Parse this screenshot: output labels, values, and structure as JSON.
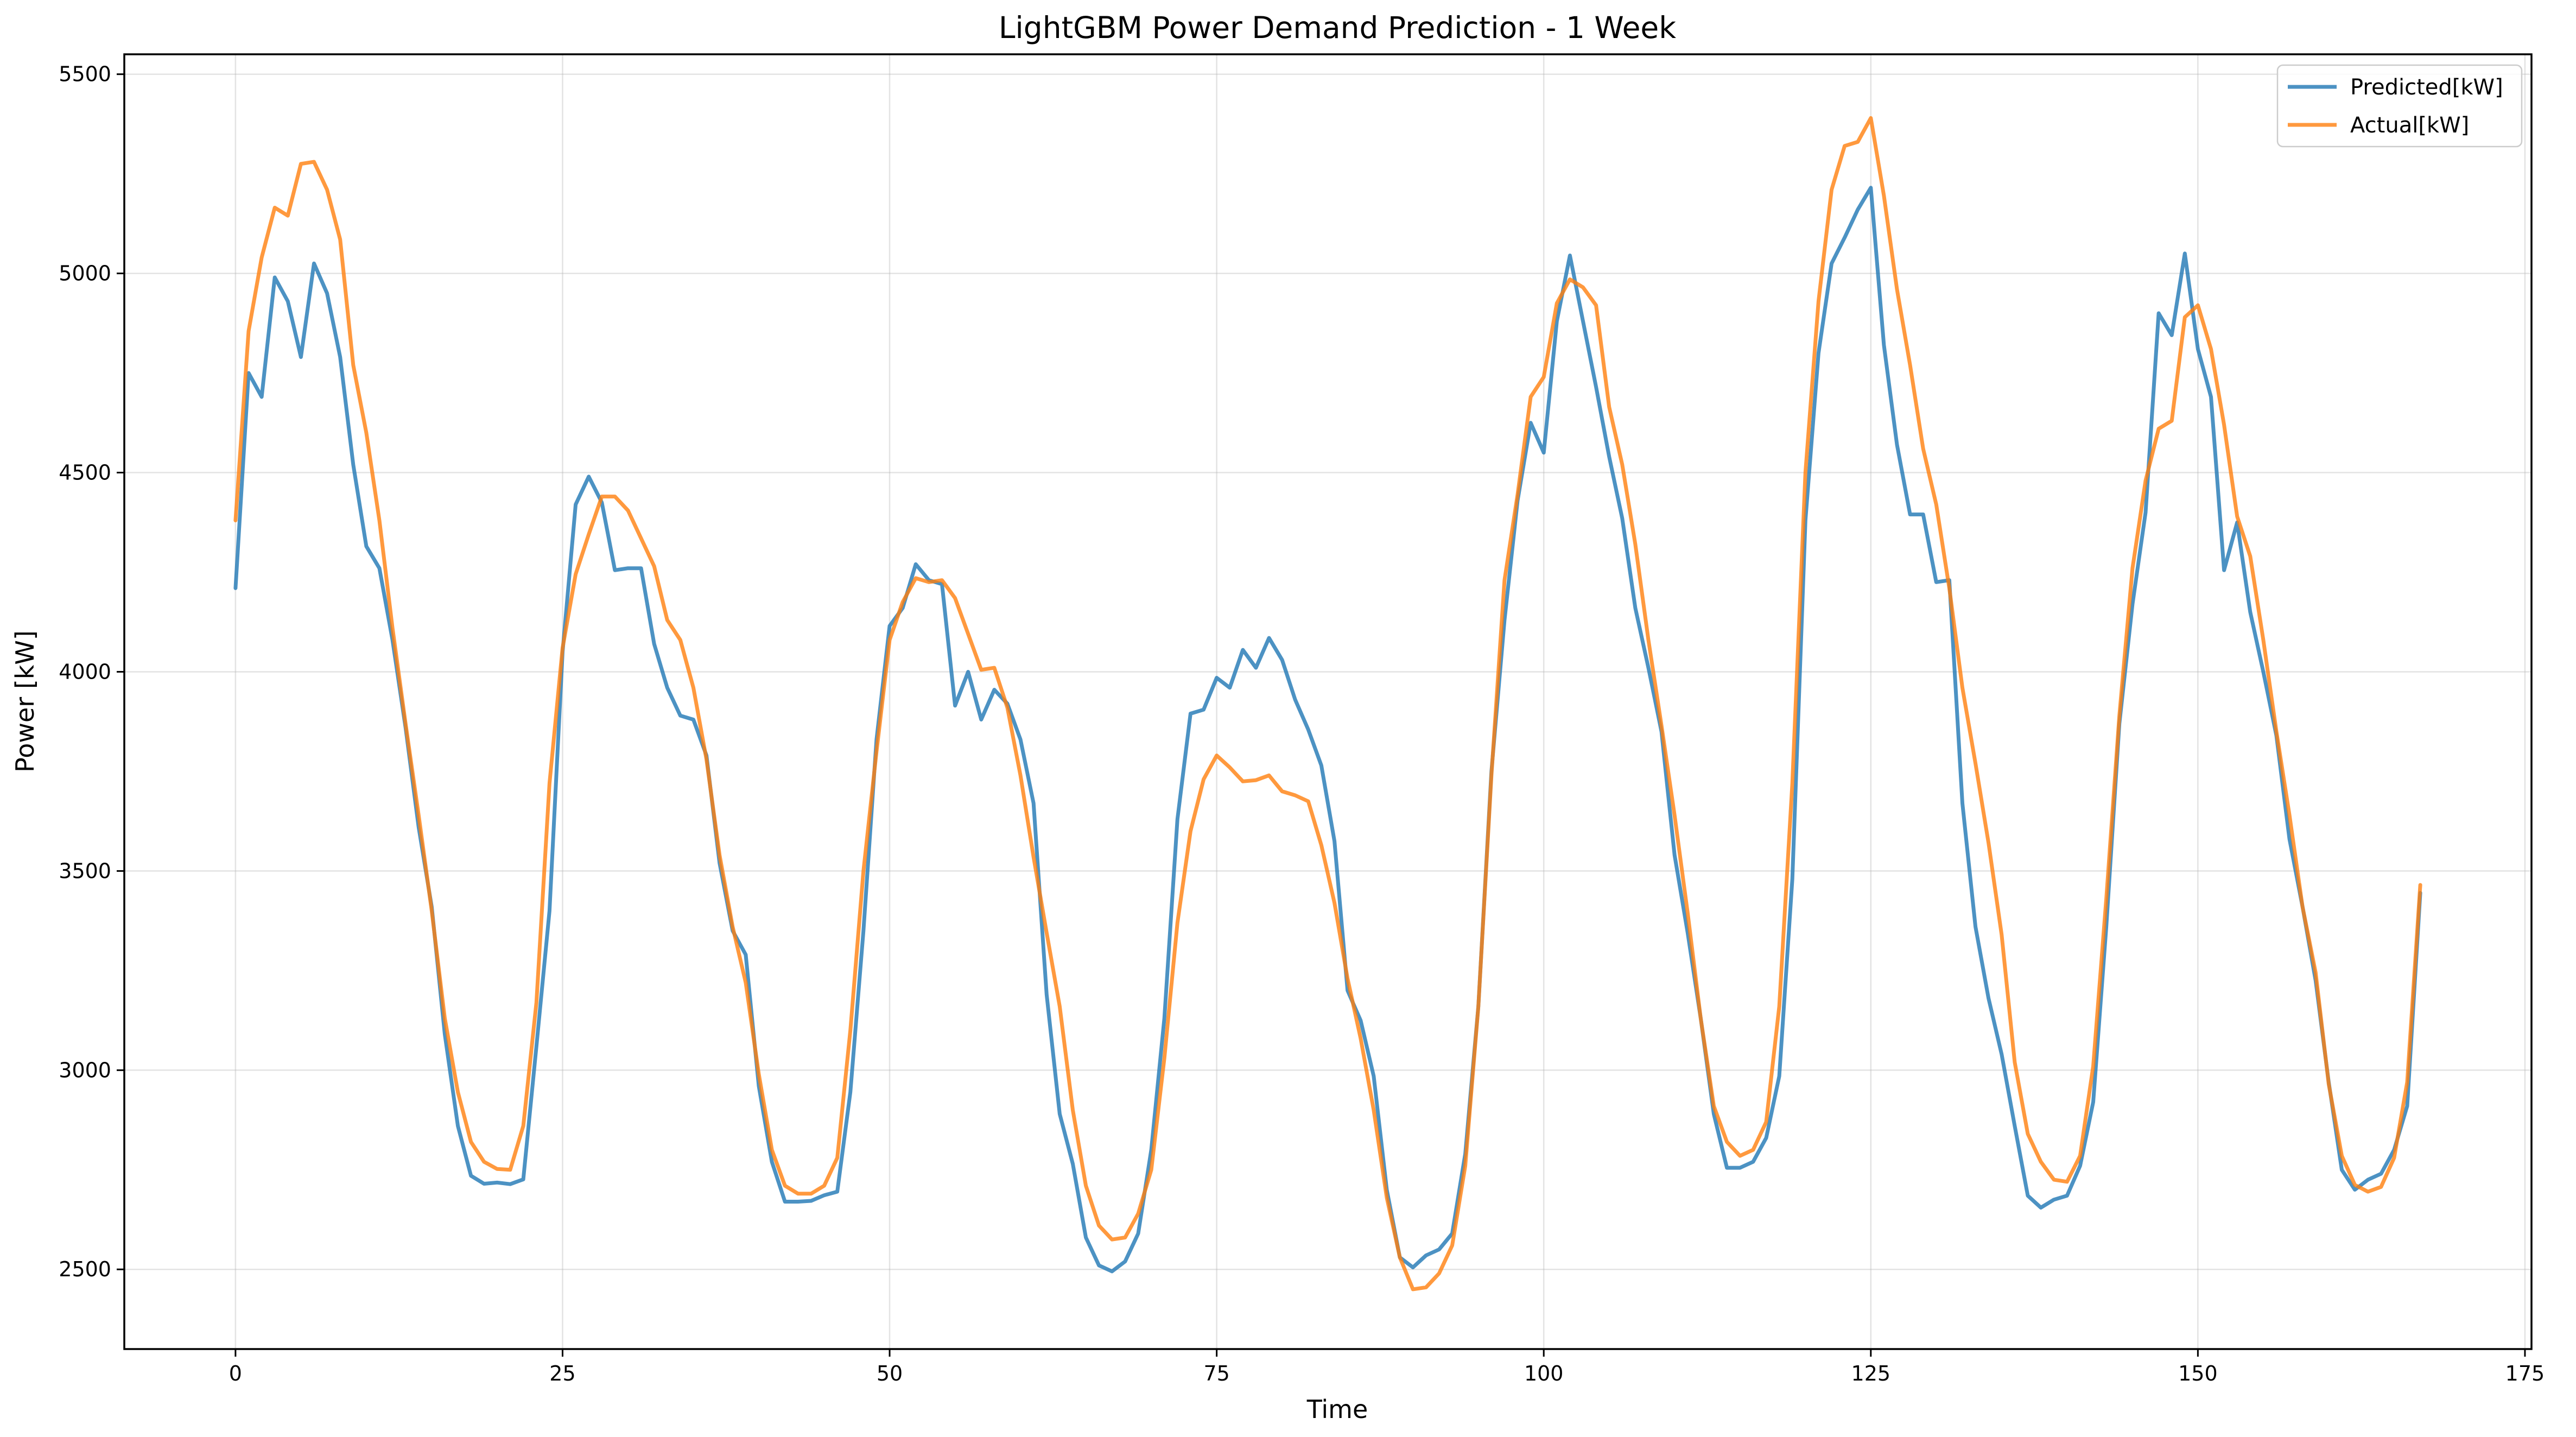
{
  "chart_data": {
    "type": "line",
    "title": "LightGBM Power Demand Prediction - 1 Week",
    "xlabel": "Time",
    "ylabel": "Power [kW]",
    "xlim": [
      -8.5,
      175.5
    ],
    "ylim": [
      2300,
      5550
    ],
    "xticks": [
      0,
      25,
      50,
      75,
      100,
      125,
      150,
      175
    ],
    "yticks": [
      2500,
      3000,
      3500,
      4000,
      4500,
      5000,
      5500
    ],
    "grid": true,
    "legend_position": "top-right",
    "series": [
      {
        "name": "Predicted[kW]",
        "color": "#1f77b4",
        "values": [
          4210,
          4750,
          4690,
          4990,
          4930,
          4790,
          5025,
          4950,
          4790,
          4520,
          4315,
          4260,
          4080,
          3860,
          3610,
          3410,
          3090,
          2860,
          2735,
          2715,
          2718,
          2714,
          2726,
          3060,
          3400,
          4050,
          4420,
          4490,
          4425,
          4255,
          4260,
          4260,
          4070,
          3960,
          3890,
          3880,
          3790,
          3520,
          3350,
          3290,
          2960,
          2770,
          2670,
          2670,
          2672,
          2686,
          2695,
          2945,
          3350,
          3830,
          4115,
          4160,
          4270,
          4230,
          4220,
          3915,
          4000,
          3880,
          3955,
          3920,
          3830,
          3670,
          3190,
          2890,
          2765,
          2580,
          2510,
          2495,
          2520,
          2590,
          2800,
          3130,
          3630,
          3895,
          3905,
          3985,
          3960,
          4055,
          4010,
          4085,
          4030,
          3930,
          3855,
          3765,
          3575,
          3200,
          3125,
          2985,
          2700,
          2530,
          2505,
          2535,
          2550,
          2590,
          2790,
          3160,
          3750,
          4130,
          4430,
          4625,
          4550,
          4880,
          5045,
          4880,
          4715,
          4540,
          4385,
          4160,
          4010,
          3850,
          3540,
          3345,
          3130,
          2890,
          2755,
          2755,
          2770,
          2830,
          2985,
          3480,
          4380,
          4800,
          5025,
          5090,
          5160,
          5215,
          4820,
          4570,
          4395,
          4395,
          4225,
          4230,
          3670,
          3360,
          3180,
          3040,
          2860,
          2685,
          2655,
          2675,
          2685,
          2760,
          2920,
          3360,
          3870,
          4170,
          4400,
          4900,
          4845,
          5050,
          4810,
          4690,
          4255,
          4375,
          4150,
          4000,
          3840,
          3580,
          3410,
          3225,
          2970,
          2750,
          2700,
          2725,
          2740,
          2800,
          2910,
          3445
        ]
      },
      {
        "name": "Actual[kW]",
        "color": "#ff7f0e",
        "values": [
          4380,
          4855,
          5040,
          5165,
          5145,
          5275,
          5280,
          5210,
          5085,
          4770,
          4600,
          4380,
          4110,
          3870,
          3640,
          3400,
          3130,
          2945,
          2820,
          2770,
          2752,
          2750,
          2860,
          3170,
          3720,
          4060,
          4245,
          4345,
          4440,
          4440,
          4405,
          4335,
          4265,
          4130,
          4080,
          3960,
          3780,
          3540,
          3360,
          3220,
          2990,
          2800,
          2710,
          2690,
          2690,
          2710,
          2780,
          3100,
          3500,
          3800,
          4080,
          4175,
          4235,
          4225,
          4230,
          4185,
          4095,
          4005,
          4010,
          3910,
          3740,
          3535,
          3345,
          3160,
          2900,
          2710,
          2610,
          2575,
          2580,
          2640,
          2750,
          3030,
          3370,
          3600,
          3730,
          3790,
          3760,
          3725,
          3728,
          3740,
          3700,
          3690,
          3675,
          3565,
          3420,
          3230,
          3080,
          2900,
          2680,
          2530,
          2450,
          2455,
          2490,
          2560,
          2760,
          3160,
          3740,
          4230,
          4445,
          4690,
          4740,
          4925,
          4985,
          4965,
          4920,
          4665,
          4520,
          4320,
          4080,
          3865,
          3640,
          3395,
          3130,
          2910,
          2820,
          2785,
          2800,
          2870,
          3160,
          3720,
          4500,
          4930,
          5210,
          5320,
          5330,
          5390,
          5195,
          4960,
          4770,
          4560,
          4420,
          4210,
          3960,
          3770,
          3570,
          3340,
          3020,
          2840,
          2770,
          2725,
          2720,
          2785,
          3010,
          3430,
          3890,
          4260,
          4480,
          4610,
          4630,
          4890,
          4920,
          4810,
          4620,
          4390,
          4290,
          4080,
          3850,
          3640,
          3410,
          3245,
          2965,
          2785,
          2712,
          2695,
          2707,
          2780,
          2970,
          3465
        ]
      }
    ]
  }
}
